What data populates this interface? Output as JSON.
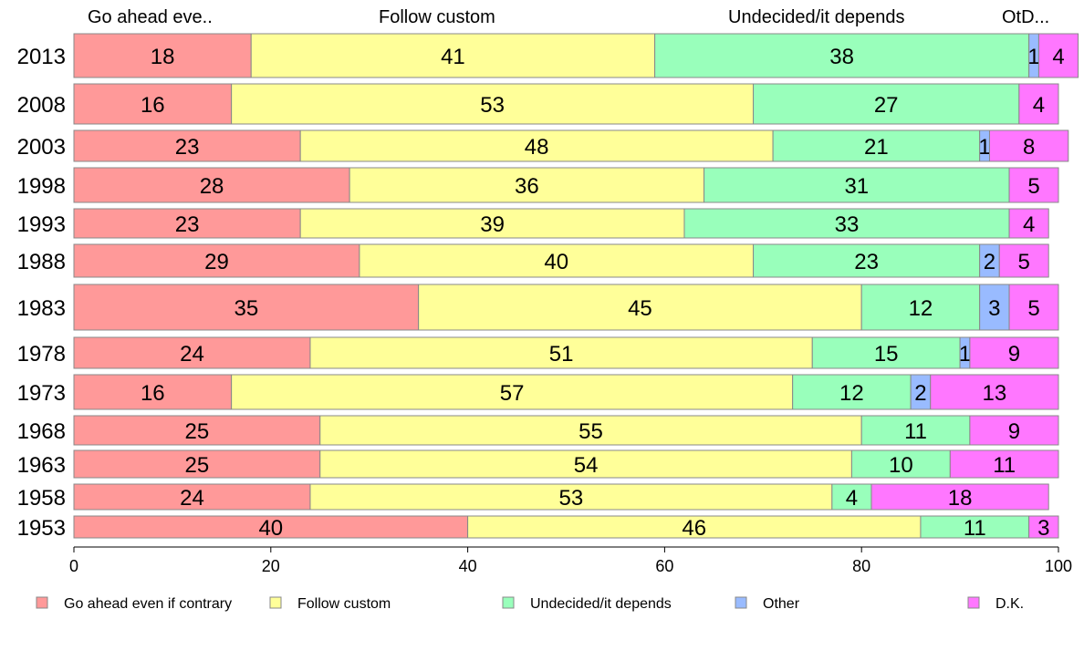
{
  "chart_data": {
    "type": "bar",
    "orientation": "horizontal",
    "stacked": true,
    "categories": [
      "2013",
      "2008",
      "2003",
      "1998",
      "1993",
      "1988",
      "1983",
      "1978",
      "1973",
      "1968",
      "1963",
      "1958",
      "1953"
    ],
    "series": [
      {
        "name": "Go ahead even if contrary",
        "color": "#ff9999",
        "values": [
          18,
          16,
          23,
          28,
          23,
          29,
          35,
          24,
          16,
          25,
          25,
          24,
          40
        ]
      },
      {
        "name": "Follow custom",
        "color": "#ffff99",
        "values": [
          41,
          53,
          48,
          36,
          39,
          40,
          45,
          51,
          57,
          55,
          54,
          53,
          46
        ]
      },
      {
        "name": "Undecided/it depends",
        "color": "#99ffbb",
        "values": [
          38,
          27,
          21,
          31,
          33,
          23,
          12,
          15,
          12,
          11,
          10,
          4,
          11
        ]
      },
      {
        "name": "Other",
        "color": "#99bbff",
        "values": [
          1,
          0,
          1,
          0,
          0,
          2,
          3,
          1,
          2,
          0,
          0,
          0,
          0
        ]
      },
      {
        "name": "D.K.",
        "color": "#ff77ff",
        "values": [
          4,
          4,
          8,
          5,
          4,
          5,
          5,
          9,
          13,
          9,
          11,
          18,
          3
        ]
      }
    ],
    "top_labels": [
      "Go ahead eve..",
      "Follow custom",
      "Undecided/it depends",
      "OtD..."
    ],
    "xlim": [
      0,
      100
    ],
    "xticks": [
      "0",
      "20",
      "40",
      "60",
      "80",
      "100"
    ],
    "legend_position": "bottom",
    "grid": false
  }
}
